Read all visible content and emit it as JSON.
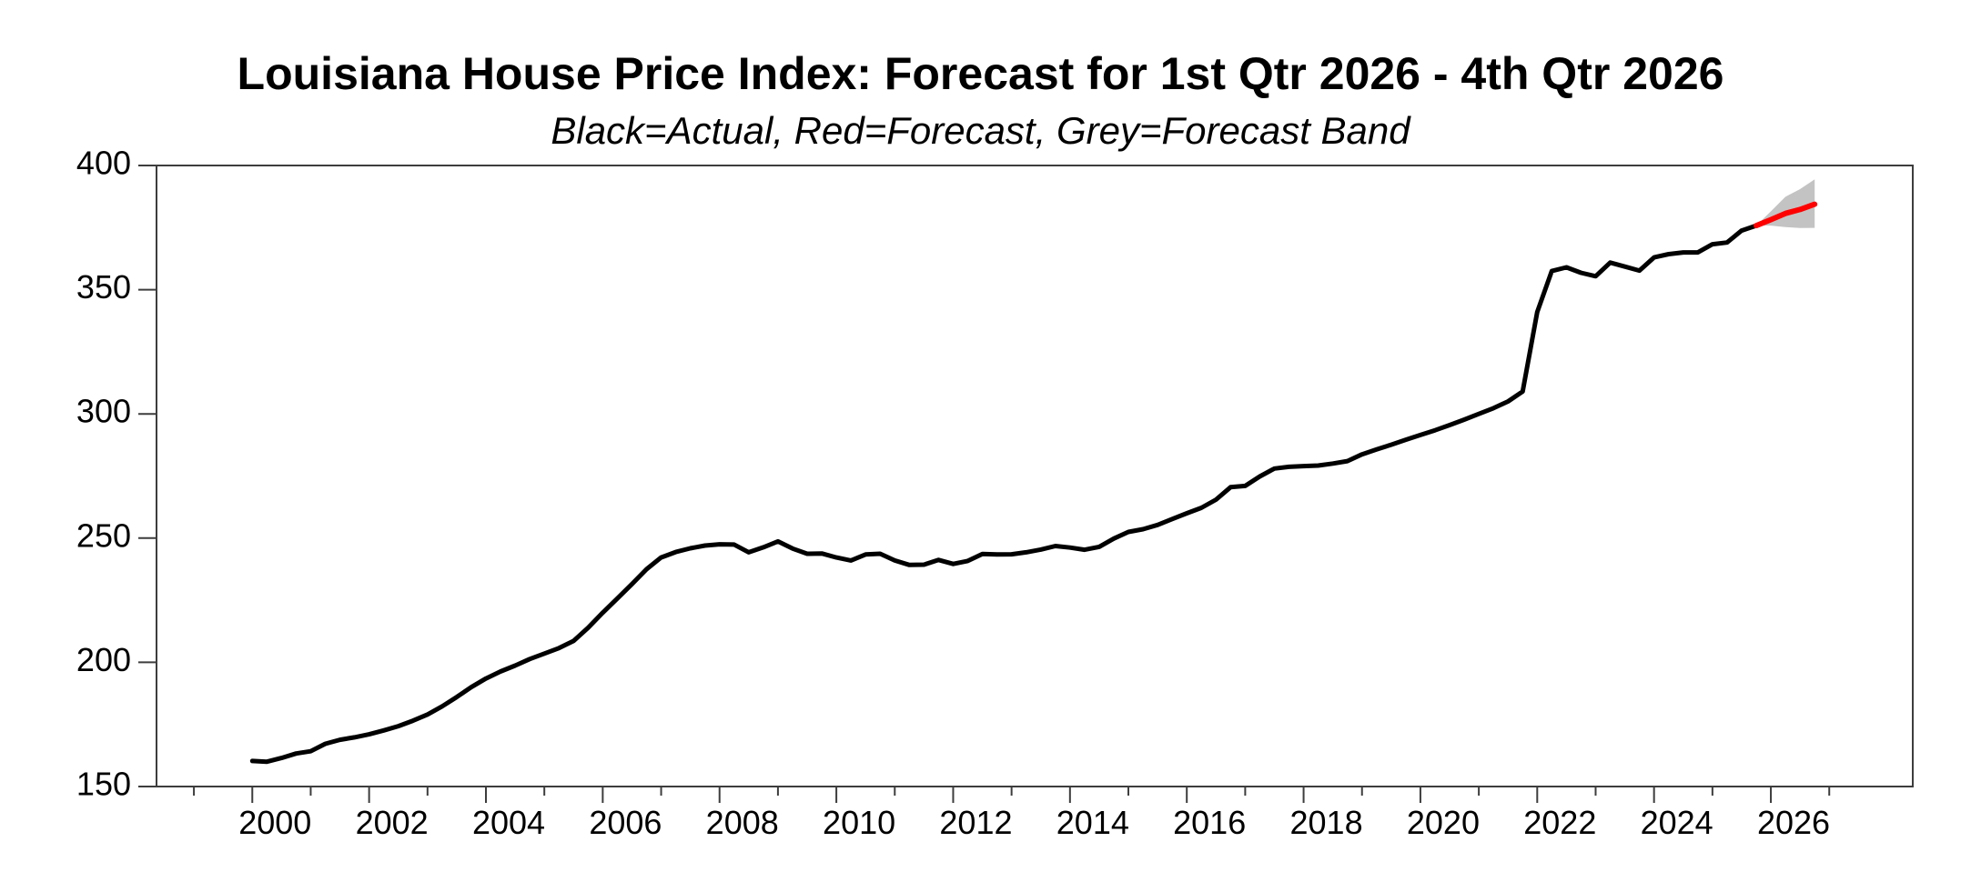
{
  "chart_data": {
    "type": "line",
    "title": "Louisiana House Price Index: Forecast for 1st Qtr 2026 - 4th Qtr 2026",
    "subtitle": "Black=Actual, Red=Forecast, Grey=Forecast Band",
    "xlabel": "",
    "ylabel": "",
    "xlim": [
      1998.36,
      2028.43
    ],
    "ylim": [
      150,
      400
    ],
    "grid": false,
    "legend_position": "none",
    "background": "#ffffff",
    "axis_color": "#3d3d3d",
    "y_ticks": [
      150,
      200,
      250,
      300,
      350,
      400
    ],
    "x_major_ticks": [
      2000,
      2002,
      2004,
      2006,
      2008,
      2010,
      2012,
      2014,
      2016,
      2018,
      2020,
      2022,
      2024,
      2026
    ],
    "x_minor_ticks": [
      1999,
      2001,
      2003,
      2005,
      2007,
      2009,
      2011,
      2013,
      2015,
      2017,
      2019,
      2021,
      2023,
      2025,
      2027
    ],
    "series": [
      {
        "name": "Actual",
        "type": "line",
        "color": "#000000",
        "width": 5,
        "x_start": 2000.0,
        "x_step": 0.25,
        "values": [
          160.3,
          160.0,
          161.5,
          163.3,
          164.2,
          167.2,
          168.8,
          169.8,
          171.0,
          172.6,
          174.3,
          176.5,
          179.0,
          182.3,
          186.0,
          190.0,
          193.5,
          196.3,
          198.7,
          201.3,
          203.5,
          205.7,
          208.6,
          213.9,
          220.0,
          225.7,
          231.5,
          237.5,
          242.2,
          244.4,
          245.9,
          247.0,
          247.5,
          247.4,
          244.3,
          246.3,
          248.7,
          245.8,
          243.7,
          243.8,
          242.2,
          241.0,
          243.4,
          243.7,
          241.0,
          239.2,
          239.3,
          241.2,
          239.6,
          240.8,
          243.6,
          243.4,
          243.5,
          244.3,
          245.4,
          246.8,
          246.2,
          245.3,
          246.5,
          249.8,
          252.5,
          253.6,
          255.3,
          257.7,
          260.0,
          262.2,
          265.5,
          270.5,
          271.0,
          274.8,
          278.0,
          278.7,
          279.0,
          279.2,
          280.0,
          281.0,
          283.7,
          285.7,
          287.6,
          289.6,
          291.5,
          293.4,
          295.5,
          297.7,
          300.0,
          302.3,
          305.0,
          309.0,
          341.0,
          357.5,
          359.0,
          356.8,
          355.4,
          360.9,
          359.3,
          357.7,
          363.0,
          364.3,
          365.0,
          365.0,
          368.3,
          369.0,
          373.8,
          375.8
        ]
      },
      {
        "name": "Forecast",
        "type": "line",
        "color": "#ff0000",
        "width": 6,
        "x_start": 2025.75,
        "x_step": 0.25,
        "values": [
          375.8,
          378.2,
          380.7,
          382.3,
          384.4
        ]
      },
      {
        "name": "Forecast Band",
        "type": "band",
        "color": "#c3c3c3",
        "x_start": 2025.75,
        "x_step": 0.25,
        "upper": [
          375.8,
          381.5,
          387.4,
          390.5,
          394.4
        ],
        "lower": [
          375.8,
          375.8,
          375.2,
          374.8,
          374.9
        ]
      }
    ]
  }
}
